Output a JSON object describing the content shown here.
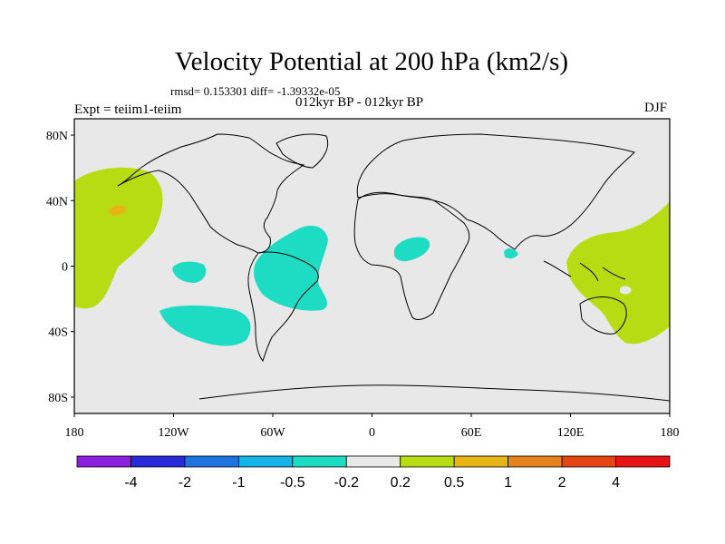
{
  "title": "Velocity Potential at 200 hPa (km2/s)",
  "stats": "rmsd= 0.153301 diff= -1.39332e-05",
  "expt": "Expt = teiim1-teiim",
  "period": "012kyr BP - 012kyr BP",
  "season": "DJF",
  "map": {
    "background": "#e8e8e8",
    "coastline_color": "#000000",
    "lon_ticks": [
      "180",
      "120W",
      "60W",
      "0",
      "60E",
      "120E",
      "180"
    ],
    "lat_ticks": [
      "80N",
      "40N",
      "0",
      "40S",
      "80S"
    ]
  },
  "colorbar": {
    "colors": [
      "#8a1fe0",
      "#2a2ad8",
      "#1e73e0",
      "#14b4e6",
      "#1edcc4",
      "#e8e8e8",
      "#b8dc14",
      "#e6b414",
      "#e6821e",
      "#e64614",
      "#e61414"
    ],
    "labels": [
      "-4",
      "-2",
      "-1",
      "-0.5",
      "-0.2",
      "0.2",
      "0.5",
      "1",
      "2",
      "4"
    ]
  },
  "regions": [
    {
      "name": "positive-anomaly-north-pacific",
      "class": "0.2 to 0.5"
    },
    {
      "name": "positive-anomaly-core-north-pacific",
      "class": "0.5 to 1"
    },
    {
      "name": "positive-anomaly-west-pacific",
      "class": "0.2 to 0.5"
    },
    {
      "name": "negative-anomaly-south-america",
      "class": "-0.5 to -0.2"
    },
    {
      "name": "negative-anomaly-east-pacific",
      "class": "-0.5 to -0.2"
    },
    {
      "name": "negative-anomaly-south-pacific",
      "class": "-0.5 to -0.2"
    },
    {
      "name": "negative-anomaly-africa",
      "class": "-0.5 to -0.2"
    },
    {
      "name": "negative-anomaly-bay-of-bengal",
      "class": "-0.5 to -0.2"
    }
  ]
}
